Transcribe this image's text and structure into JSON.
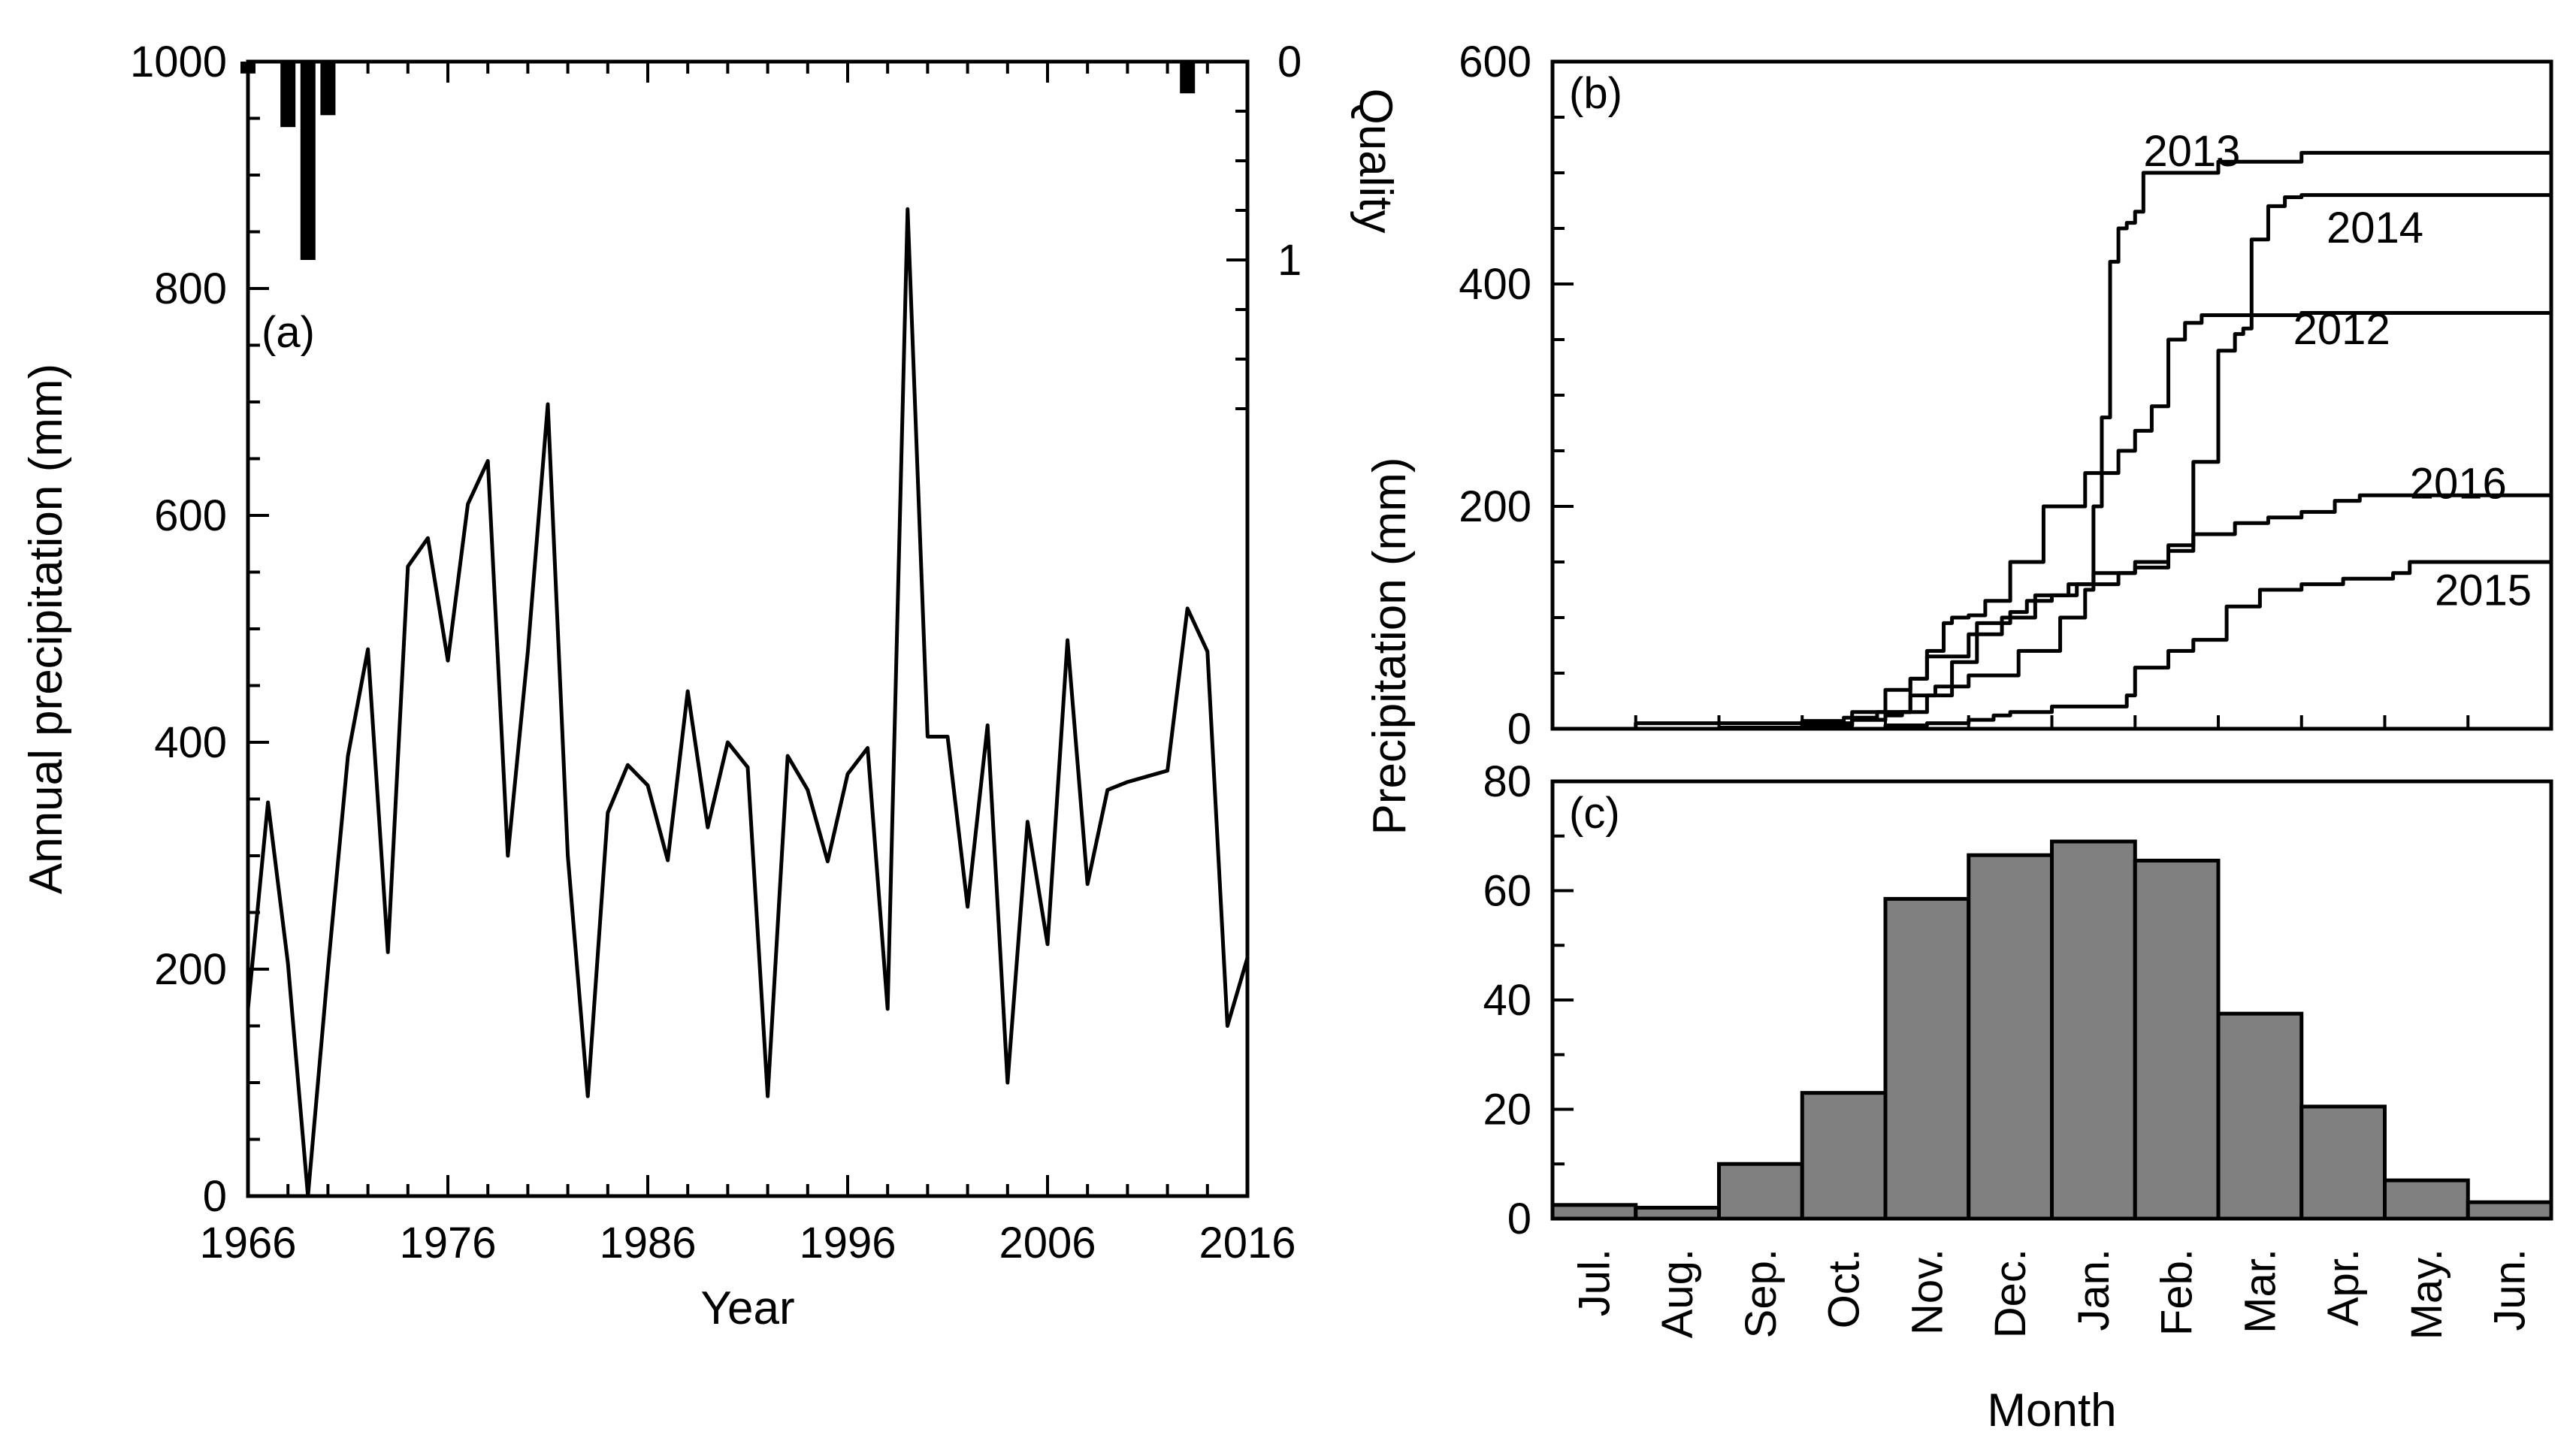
{
  "chart_data": [
    {
      "id": "a",
      "panel_label": "(a)",
      "type": "line",
      "xlabel": "Year",
      "ylabel": "Annual precipitation (mm)",
      "xlim": [
        1966,
        2016
      ],
      "ylim": [
        0,
        1000
      ],
      "xticks": [
        "1966",
        "1976",
        "1986",
        "1996",
        "2006",
        "2016"
      ],
      "yticks": [
        "0",
        "200",
        "400",
        "600",
        "800",
        "1000"
      ],
      "x": [
        1966,
        1967,
        1968,
        1969,
        1970,
        1971,
        1972,
        1973,
        1974,
        1975,
        1976,
        1977,
        1978,
        1979,
        1980,
        1981,
        1982,
        1983,
        1984,
        1985,
        1986,
        1987,
        1988,
        1989,
        1990,
        1991,
        1992,
        1993,
        1994,
        1995,
        1996,
        1997,
        1998,
        1999,
        2000,
        2001,
        2002,
        2003,
        2004,
        2005,
        2006,
        2007,
        2008,
        2009,
        2010,
        2012,
        2013,
        2014,
        2015,
        2016
      ],
      "values": [
        165,
        347,
        205,
        0,
        200,
        388,
        482,
        215,
        555,
        580,
        472,
        610,
        648,
        300,
        480,
        698,
        300,
        88,
        338,
        380,
        362,
        296,
        445,
        325,
        400,
        378,
        88,
        388,
        358,
        295,
        372,
        395,
        165,
        870,
        405,
        405,
        255,
        415,
        100,
        330,
        222,
        490,
        275,
        358,
        365,
        375,
        518,
        480,
        150,
        210
      ],
      "quality_axis": {
        "label": "Quality",
        "ylim": [
          0,
          1
        ],
        "ticks": [
          "0",
          "1"
        ],
        "bars": [
          {
            "year": 1966,
            "value": 0.06
          },
          {
            "year": 1968,
            "value": 0.33
          },
          {
            "year": 1969,
            "value": 1.0
          },
          {
            "year": 1970,
            "value": 0.27
          },
          {
            "year": 2013,
            "value": 0.16
          }
        ]
      }
    },
    {
      "id": "b",
      "panel_label": "(b)",
      "type": "line",
      "ylim": [
        0,
        600
      ],
      "yticks": [
        "0",
        "200",
        "400",
        "600"
      ],
      "xlim": [
        0,
        12
      ],
      "series": [
        {
          "name": "2012",
          "label_pos": [
            8.9,
            346
          ],
          "points": [
            [
              0,
              0
            ],
            [
              2.2,
              1
            ],
            [
              3.0,
              3
            ],
            [
              3.6,
              8
            ],
            [
              4.0,
              15
            ],
            [
              4.3,
              45
            ],
            [
              4.5,
              70
            ],
            [
              4.7,
              95
            ],
            [
              4.8,
              100
            ],
            [
              5.0,
              102
            ],
            [
              5.2,
              115
            ],
            [
              5.5,
              150
            ],
            [
              5.9,
              200
            ],
            [
              6.4,
              230
            ],
            [
              6.8,
              250
            ],
            [
              7.0,
              268
            ],
            [
              7.2,
              290
            ],
            [
              7.4,
              350
            ],
            [
              7.6,
              365
            ],
            [
              7.8,
              372
            ],
            [
              9.0,
              374
            ],
            [
              12,
              375
            ]
          ]
        },
        {
          "name": "2013",
          "label_pos": [
            7.1,
            506
          ],
          "points": [
            [
              0,
              0
            ],
            [
              1.0,
              5
            ],
            [
              3.0,
              7
            ],
            [
              3.5,
              10
            ],
            [
              3.9,
              15
            ],
            [
              4.3,
              30
            ],
            [
              4.6,
              38
            ],
            [
              5.0,
              48
            ],
            [
              5.6,
              70
            ],
            [
              6.1,
              100
            ],
            [
              6.4,
              125
            ],
            [
              6.5,
              200
            ],
            [
              6.6,
              280
            ],
            [
              6.7,
              420
            ],
            [
              6.8,
              450
            ],
            [
              6.9,
              455
            ],
            [
              7.0,
              465
            ],
            [
              7.1,
              500
            ],
            [
              8.0,
              510
            ],
            [
              9.0,
              518
            ],
            [
              12,
              518
            ]
          ]
        },
        {
          "name": "2014",
          "label_pos": [
            9.3,
            437
          ],
          "points": [
            [
              0,
              0
            ],
            [
              1.0,
              0
            ],
            [
              2.0,
              1
            ],
            [
              3.0,
              3
            ],
            [
              3.6,
              8
            ],
            [
              4.0,
              12
            ],
            [
              4.2,
              15
            ],
            [
              4.5,
              30
            ],
            [
              4.8,
              60
            ],
            [
              5.1,
              95
            ],
            [
              5.5,
              105
            ],
            [
              5.7,
              115
            ],
            [
              6.0,
              120
            ],
            [
              6.3,
              130
            ],
            [
              6.8,
              140
            ],
            [
              7.0,
              145
            ],
            [
              7.4,
              160
            ],
            [
              7.7,
              240
            ],
            [
              8.0,
              340
            ],
            [
              8.2,
              355
            ],
            [
              8.3,
              360
            ],
            [
              8.4,
              440
            ],
            [
              8.6,
              470
            ],
            [
              8.8,
              478
            ],
            [
              9.0,
              480
            ],
            [
              12,
              481
            ]
          ]
        },
        {
          "name": "2015",
          "label_pos": [
            10.6,
            111
          ],
          "points": [
            [
              0,
              0
            ],
            [
              2.0,
              0
            ],
            [
              3.0,
              0
            ],
            [
              4.0,
              3
            ],
            [
              4.5,
              5
            ],
            [
              5.0,
              8
            ],
            [
              5.3,
              12
            ],
            [
              5.5,
              15
            ],
            [
              6.0,
              20
            ],
            [
              6.9,
              30
            ],
            [
              7.0,
              55
            ],
            [
              7.4,
              70
            ],
            [
              7.7,
              80
            ],
            [
              8.1,
              110
            ],
            [
              8.5,
              125
            ],
            [
              9.0,
              130
            ],
            [
              9.5,
              135
            ],
            [
              10.1,
              140
            ],
            [
              10.3,
              150
            ],
            [
              12,
              152
            ]
          ]
        },
        {
          "name": "2016",
          "label_pos": [
            10.3,
            207
          ],
          "points": [
            [
              0,
              0
            ],
            [
              2.0,
              0
            ],
            [
              3.0,
              5
            ],
            [
              3.6,
              15
            ],
            [
              4.0,
              35
            ],
            [
              4.3,
              45
            ],
            [
              4.5,
              65
            ],
            [
              5.0,
              85
            ],
            [
              5.4,
              100
            ],
            [
              5.8,
              120
            ],
            [
              6.2,
              130
            ],
            [
              6.5,
              140
            ],
            [
              7.0,
              150
            ],
            [
              7.4,
              165
            ],
            [
              7.7,
              175
            ],
            [
              8.2,
              185
            ],
            [
              8.6,
              190
            ],
            [
              9.0,
              195
            ],
            [
              9.4,
              205
            ],
            [
              9.7,
              210
            ],
            [
              12,
              213
            ]
          ]
        }
      ]
    },
    {
      "id": "c",
      "panel_label": "(c)",
      "type": "bar",
      "xlabel": "Month",
      "ylabel": "Precipitation (mm)",
      "ylim": [
        0,
        80
      ],
      "yticks": [
        "0",
        "20",
        "40",
        "60",
        "80"
      ],
      "categories": [
        "Jul.",
        "Aug.",
        "Sep.",
        "Oct.",
        "Nov.",
        "Dec.",
        "Jan.",
        "Feb.",
        "Mar.",
        "Apr.",
        "May.",
        "Jun."
      ],
      "values": [
        2.5,
        2,
        10,
        23,
        58.5,
        66.5,
        69,
        65.5,
        37.5,
        20.5,
        7,
        3
      ],
      "bar_color": "#808080"
    }
  ]
}
